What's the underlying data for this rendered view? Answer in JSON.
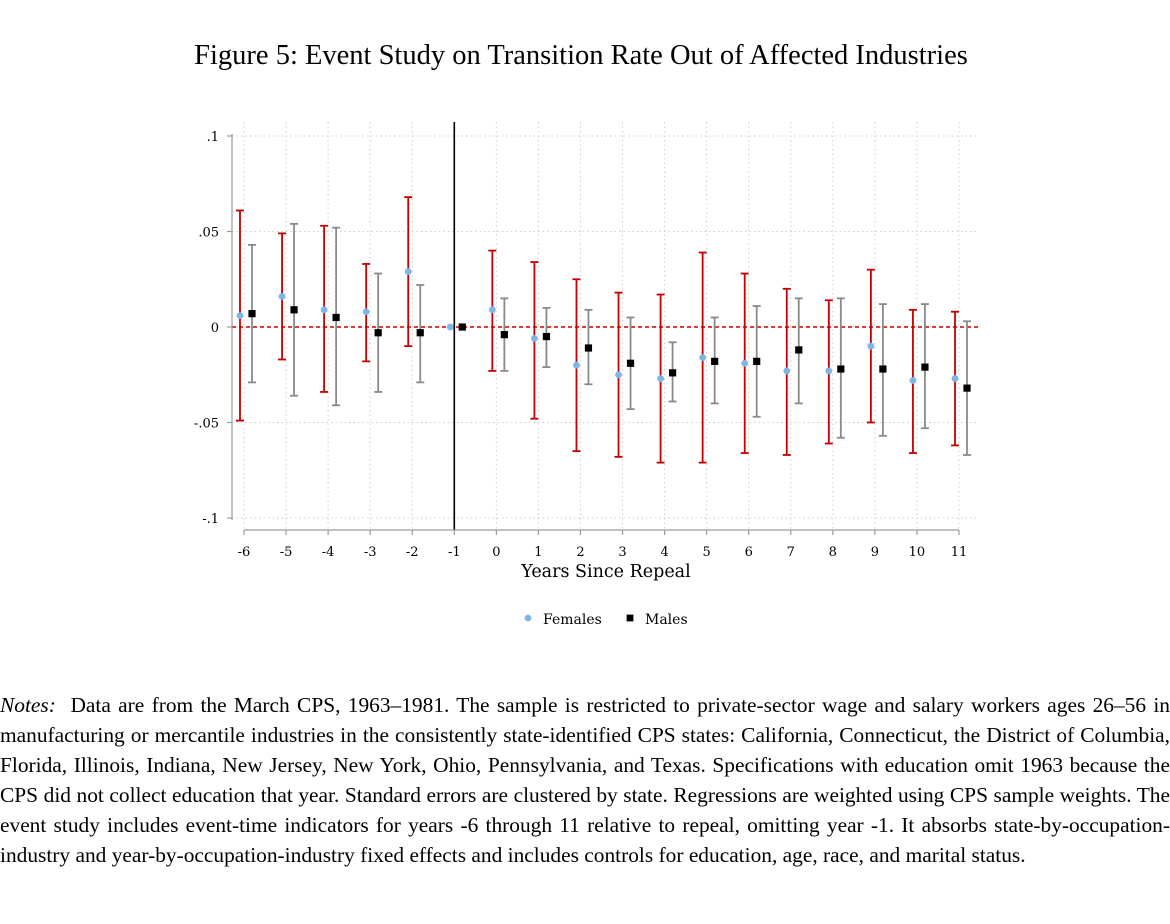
{
  "figure_title": "Figure 5: Event Study on Transition Rate Out of Affected Industries",
  "notes": {
    "label": "Notes:",
    "text": "Data are from the March CPS, 1963–1981. The sample is restricted to private-sector wage and salary workers ages 26–56 in manufacturing or mercantile industries in the consistently state-identified CPS states: California, Connecticut, the District of Columbia, Florida, Illinois, Indiana, New Jersey, New York, Ohio, Pennsylvania, and Texas. Specifications with education omit 1963 because the CPS did not collect education that year. Standard errors are clustered by state. Regressions are weighted using CPS sample weights. The event study includes event-time indicators for years -6 through 11 relative to repeal, omitting year -1. It absorbs state-by-occupation-industry and year-by-occupation-industry fixed effects and includes controls for education, age, race, and marital status."
  },
  "chart_data": {
    "type": "scatter",
    "subtype": "event-study coefficient plot with confidence intervals",
    "title": "",
    "xlabel": "Years Since Repeal",
    "ylabel": "",
    "x": [
      -6,
      -5,
      -4,
      -3,
      -2,
      -1,
      0,
      1,
      2,
      3,
      4,
      5,
      6,
      7,
      8,
      9,
      10,
      11
    ],
    "x_tick_labels": [
      "-6",
      "-5",
      "-4",
      "-3",
      "-2",
      "-1",
      "0",
      "1",
      "2",
      "3",
      "4",
      "5",
      "6",
      "7",
      "8",
      "9",
      "10",
      "11"
    ],
    "y_ticks": [
      0.1,
      0.05,
      0,
      -0.05,
      -0.1
    ],
    "y_tick_labels": [
      ".1",
      ".05",
      "0",
      "-.05",
      "-.1"
    ],
    "ylim": [
      -0.1,
      0.1
    ],
    "xlim": [
      -6,
      11
    ],
    "grid": true,
    "reference_lines": {
      "vertical_at_x": -1,
      "horizontal_at_y": 0,
      "horizontal_color": "#cc0000",
      "horizontal_style": "dashed"
    },
    "legend": {
      "placement": "bottom-center"
    },
    "series": [
      {
        "name": "Females",
        "marker": "circle",
        "color": "#7fb6e6",
        "ci_color": "#c40000",
        "estimate": [
          0.006,
          0.016,
          0.009,
          0.008,
          0.029,
          0.0,
          0.009,
          -0.006,
          -0.02,
          -0.025,
          -0.027,
          -0.016,
          -0.019,
          -0.023,
          -0.023,
          -0.01,
          -0.028,
          -0.027
        ],
        "ci_low": [
          -0.049,
          -0.017,
          -0.034,
          -0.018,
          -0.01,
          0.0,
          -0.023,
          -0.048,
          -0.065,
          -0.068,
          -0.071,
          -0.071,
          -0.066,
          -0.067,
          -0.061,
          -0.05,
          -0.066,
          -0.062
        ],
        "ci_high": [
          0.061,
          0.049,
          0.053,
          0.033,
          0.068,
          0.0,
          0.04,
          0.034,
          0.025,
          0.018,
          0.017,
          0.039,
          0.028,
          0.02,
          0.014,
          0.03,
          0.009,
          0.008
        ]
      },
      {
        "name": "Males",
        "marker": "square",
        "color": "#000000",
        "ci_color": "#8a8a8a",
        "estimate": [
          0.007,
          0.009,
          0.005,
          -0.003,
          -0.003,
          0.0,
          -0.004,
          -0.005,
          -0.011,
          -0.019,
          -0.024,
          -0.018,
          -0.018,
          -0.012,
          -0.022,
          -0.022,
          -0.021,
          -0.032
        ],
        "ci_low": [
          -0.029,
          -0.036,
          -0.041,
          -0.034,
          -0.029,
          0.0,
          -0.023,
          -0.021,
          -0.03,
          -0.043,
          -0.039,
          -0.04,
          -0.047,
          -0.04,
          -0.058,
          -0.057,
          -0.053,
          -0.067
        ],
        "ci_high": [
          0.043,
          0.054,
          0.052,
          0.028,
          0.022,
          0.0,
          0.015,
          0.01,
          0.009,
          0.005,
          -0.008,
          0.005,
          0.011,
          0.015,
          0.015,
          0.012,
          0.012,
          0.003
        ]
      }
    ]
  }
}
